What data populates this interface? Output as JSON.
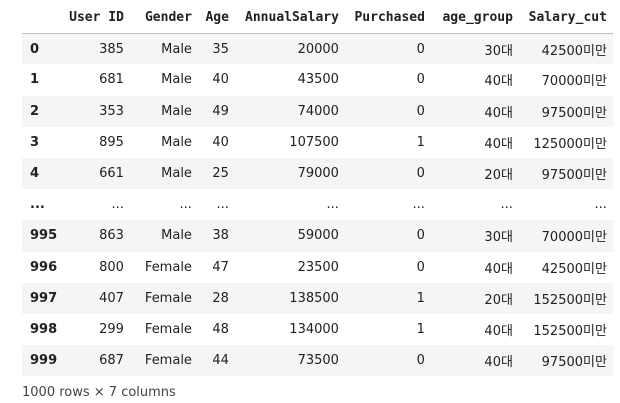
{
  "dataframe": {
    "columns": [
      "User ID",
      "Gender",
      "Age",
      "AnnualSalary",
      "Purchased",
      "age_group",
      "Salary_cut"
    ],
    "rows": [
      {
        "index": "0",
        "cells": [
          "385",
          "Male",
          "35",
          "20000",
          "0",
          "30대",
          "42500미만"
        ]
      },
      {
        "index": "1",
        "cells": [
          "681",
          "Male",
          "40",
          "43500",
          "0",
          "40대",
          "70000미만"
        ]
      },
      {
        "index": "2",
        "cells": [
          "353",
          "Male",
          "49",
          "74000",
          "0",
          "40대",
          "97500미만"
        ]
      },
      {
        "index": "3",
        "cells": [
          "895",
          "Male",
          "40",
          "107500",
          "1",
          "40대",
          "125000미만"
        ]
      },
      {
        "index": "4",
        "cells": [
          "661",
          "Male",
          "25",
          "79000",
          "0",
          "20대",
          "97500미만"
        ]
      },
      {
        "index": "...",
        "cells": [
          "...",
          "...",
          "...",
          "...",
          "...",
          "...",
          "..."
        ]
      },
      {
        "index": "995",
        "cells": [
          "863",
          "Male",
          "38",
          "59000",
          "0",
          "30대",
          "70000미만"
        ]
      },
      {
        "index": "996",
        "cells": [
          "800",
          "Female",
          "47",
          "23500",
          "0",
          "40대",
          "42500미만"
        ]
      },
      {
        "index": "997",
        "cells": [
          "407",
          "Female",
          "28",
          "138500",
          "1",
          "20대",
          "152500미만"
        ]
      },
      {
        "index": "998",
        "cells": [
          "299",
          "Female",
          "48",
          "134000",
          "1",
          "40대",
          "152500미만"
        ]
      },
      {
        "index": "999",
        "cells": [
          "687",
          "Female",
          "44",
          "73500",
          "0",
          "40대",
          "97500미만"
        ]
      }
    ],
    "shape_text": "1000 rows × 7 columns"
  },
  "colors": {
    "row_stripe": "#f5f5f5",
    "header_border": "#bdbdbd",
    "text": "#212121"
  }
}
